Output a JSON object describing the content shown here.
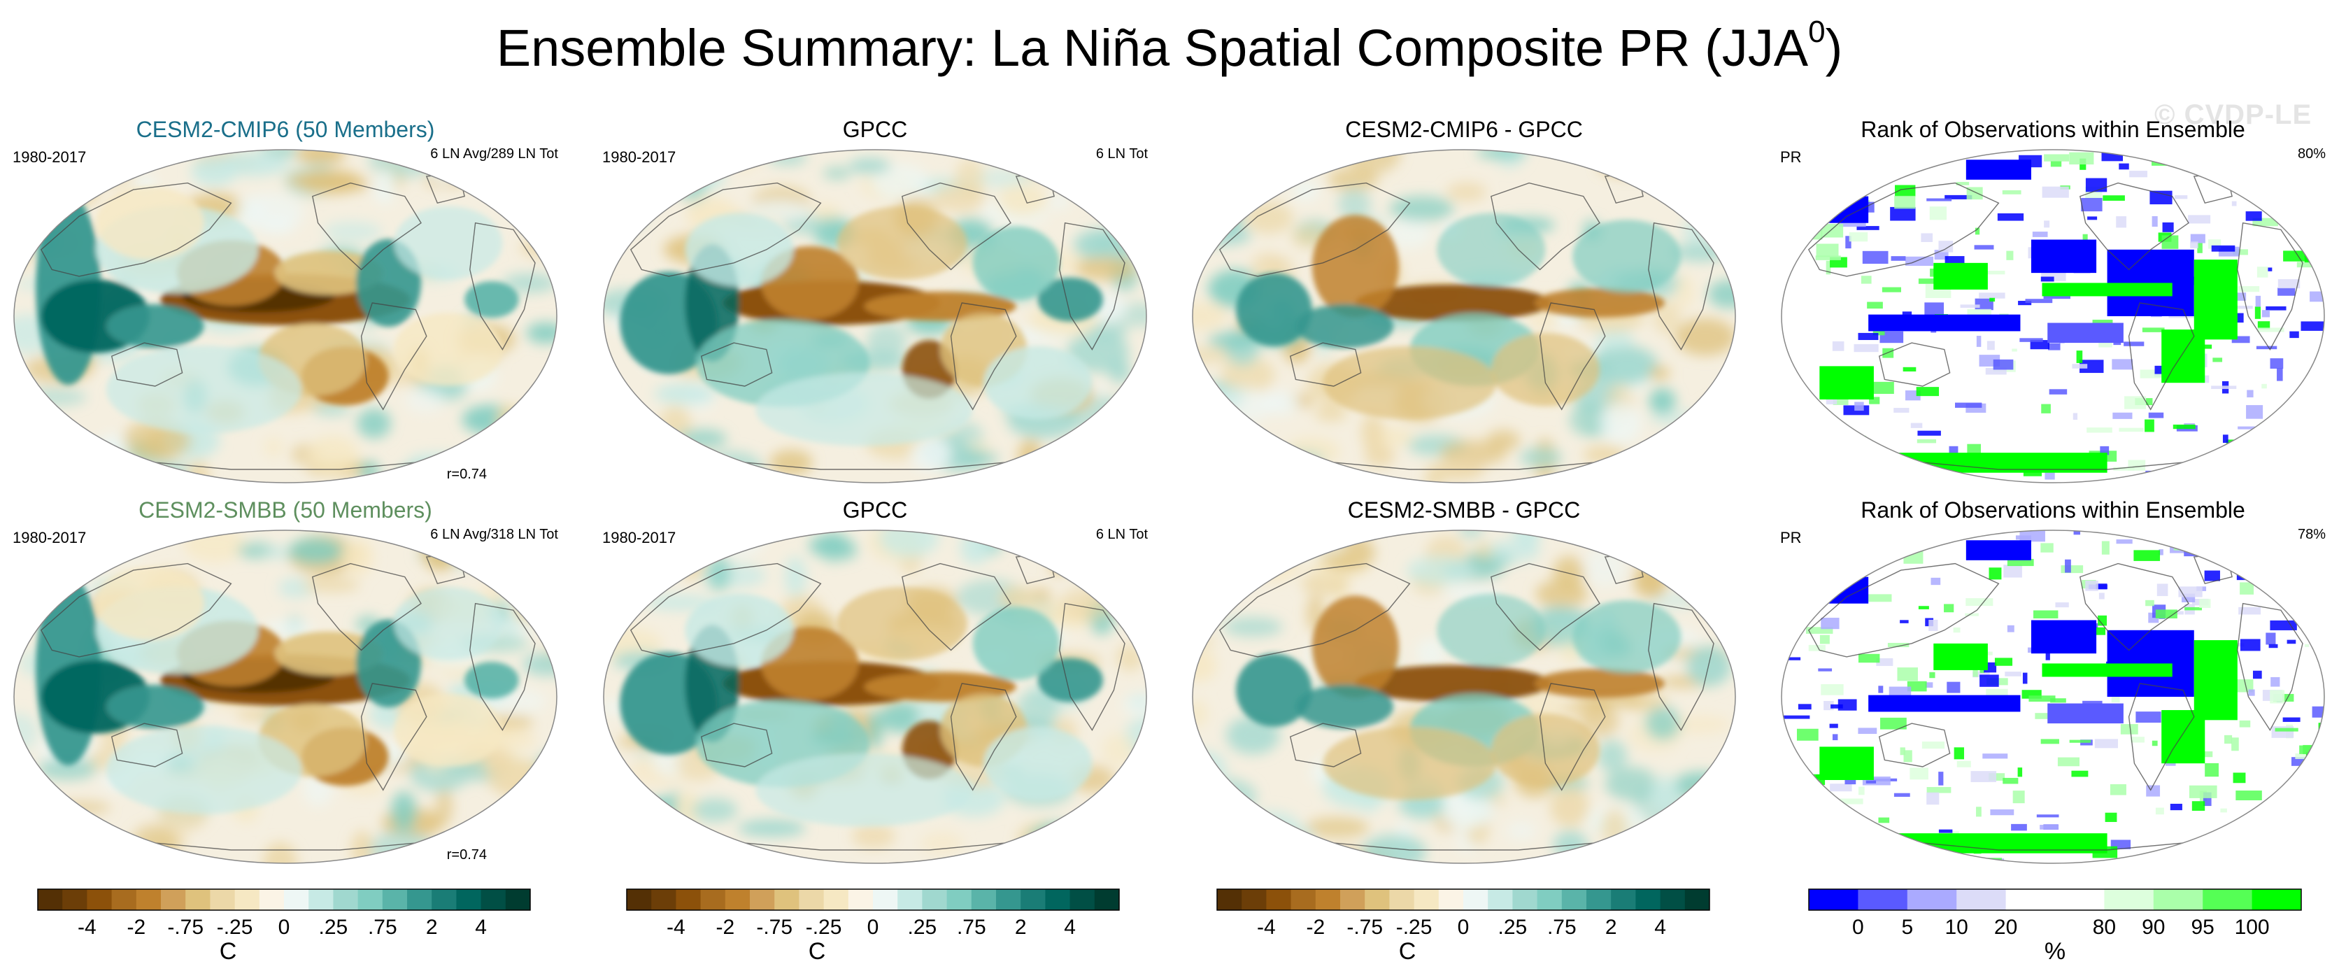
{
  "title": {
    "main": "Ensemble Summary: La Niña Spatial Composite PR (JJA",
    "superscript": "0",
    "close": ")"
  },
  "watermark": "© CVDP-LE",
  "chart_data": {
    "type": "heatmap",
    "rows": [
      {
        "panels": [
          {
            "kind": "model",
            "title": "CESM2-CMIP6 (50 Members)",
            "title_color": "#1a6f8a",
            "left": "1980-2017",
            "right": "6 LN Avg/289 LN Tot",
            "corr": "r=0.74"
          },
          {
            "kind": "obs",
            "title": "GPCC",
            "left": "1980-2017",
            "right": "6 LN Tot"
          },
          {
            "kind": "diff",
            "title": "CESM2-CMIP6 - GPCC"
          },
          {
            "kind": "rank",
            "title": "Rank of Observations within Ensemble",
            "left": "PR",
            "right": "80%"
          }
        ]
      },
      {
        "panels": [
          {
            "kind": "model",
            "title": "CESM2-SMBB (50 Members)",
            "title_color": "#5e8f5e",
            "left": "1980-2017",
            "right": "6 LN Avg/318 LN Tot",
            "corr": "r=0.74"
          },
          {
            "kind": "obs",
            "title": "GPCC",
            "left": "1980-2017",
            "right": "6 LN Tot"
          },
          {
            "kind": "diff",
            "title": "CESM2-SMBB - GPCC"
          },
          {
            "kind": "rank",
            "title": "Rank of Observations within Ensemble",
            "left": "PR",
            "right": "78%"
          }
        ]
      }
    ],
    "colorbars": [
      {
        "unit": "C",
        "labels": [
          "-4",
          "-2",
          "-.75",
          "-.25",
          "0",
          ".25",
          ".75",
          "2",
          "4"
        ],
        "colors": [
          "#543005",
          "#6c3e08",
          "#8c510a",
          "#a86c1f",
          "#bf812d",
          "#d0a05a",
          "#dfc27d",
          "#ecd8a8",
          "#f6e8c3",
          "#fbf4e6",
          "#eef7f5",
          "#c7eae5",
          "#a0d8cf",
          "#80cdc1",
          "#5ab4a9",
          "#35978f",
          "#1a7d76",
          "#01665e",
          "#014f45",
          "#003c30"
        ]
      },
      {
        "unit": "C",
        "labels": [
          "-4",
          "-2",
          "-.75",
          "-.25",
          "0",
          ".25",
          ".75",
          "2",
          "4"
        ],
        "colors": [
          "#543005",
          "#6c3e08",
          "#8c510a",
          "#a86c1f",
          "#bf812d",
          "#d0a05a",
          "#dfc27d",
          "#ecd8a8",
          "#f6e8c3",
          "#fbf4e6",
          "#eef7f5",
          "#c7eae5",
          "#a0d8cf",
          "#80cdc1",
          "#5ab4a9",
          "#35978f",
          "#1a7d76",
          "#01665e",
          "#014f45",
          "#003c30"
        ]
      },
      {
        "unit": "C",
        "labels": [
          "-4",
          "-2",
          "-.75",
          "-.25",
          "0",
          ".25",
          ".75",
          "2",
          "4"
        ],
        "colors": [
          "#543005",
          "#6c3e08",
          "#8c510a",
          "#a86c1f",
          "#bf812d",
          "#d0a05a",
          "#dfc27d",
          "#ecd8a8",
          "#f6e8c3",
          "#fbf4e6",
          "#eef7f5",
          "#c7eae5",
          "#a0d8cf",
          "#80cdc1",
          "#5ab4a9",
          "#35978f",
          "#1a7d76",
          "#01665e",
          "#014f45",
          "#003c30"
        ]
      },
      {
        "unit": "%",
        "labels": [
          "0",
          "5",
          "10",
          "20",
          "80",
          "90",
          "95",
          "100"
        ],
        "colors": [
          "#0000ff",
          "#5a5aff",
          "#aaaaff",
          "#dcdcf8",
          "#ffffff",
          "#ffffff",
          "#ddffdd",
          "#aaffaa",
          "#55ff55",
          "#00ff00"
        ]
      }
    ]
  }
}
